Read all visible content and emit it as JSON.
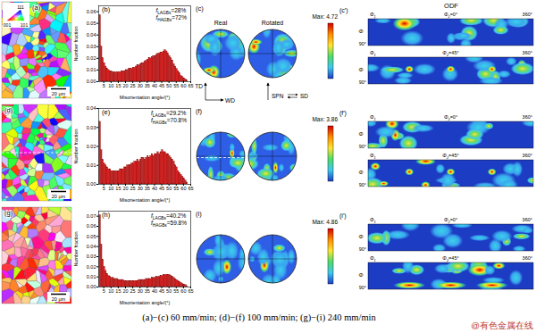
{
  "chart_data": [
    {
      "type": "histogram",
      "title": "(b)",
      "x_label": "Misorientation angle/(°)",
      "y_label": "Number fraction",
      "bins": [
        2,
        3,
        4,
        5,
        6,
        7,
        8,
        9,
        10,
        11,
        12,
        13,
        14,
        15,
        16,
        17,
        18,
        19,
        20,
        21,
        22,
        23,
        24,
        25,
        26,
        27,
        28,
        29,
        30,
        31,
        32,
        33,
        34,
        35,
        36,
        37,
        38,
        39,
        40,
        41,
        42,
        43,
        44,
        45,
        46,
        47,
        48,
        49,
        50,
        51,
        52,
        53,
        54,
        55,
        56,
        57,
        58,
        59,
        60,
        61,
        62,
        63
      ],
      "values": [
        0.057,
        0.03,
        0.02,
        0.016,
        0.013,
        0.011,
        0.01,
        0.009,
        0.009,
        0.008,
        0.008,
        0.008,
        0.008,
        0.008,
        0.008,
        0.009,
        0.009,
        0.009,
        0.01,
        0.01,
        0.011,
        0.011,
        0.011,
        0.012,
        0.012,
        0.013,
        0.014,
        0.014,
        0.015,
        0.016,
        0.016,
        0.017,
        0.018,
        0.019,
        0.02,
        0.02,
        0.021,
        0.022,
        0.022,
        0.023,
        0.024,
        0.024,
        0.025,
        0.025,
        0.026,
        0.027,
        0.026,
        0.024,
        0.022,
        0.02,
        0.018,
        0.015,
        0.013,
        0.011,
        0.009,
        0.007,
        0.005,
        0.004,
        0.003,
        0.002,
        0.001
      ],
      "color": "#d62020",
      "xlim": [
        1.5,
        65
      ],
      "xticks": [
        5,
        10,
        15,
        20,
        25,
        30,
        35,
        40,
        45,
        50,
        55,
        60,
        65
      ],
      "ylim": [
        0,
        0.065
      ],
      "yticks": [
        {
          "value": 0,
          "label": "0.00"
        },
        0.01,
        0.02,
        0.03,
        0.04,
        0.05,
        0.06
      ],
      "annotations": [
        "fLAGBs=28%",
        "fHAGBs=72%"
      ]
    },
    {
      "type": "histogram",
      "title": "(e)",
      "x_label": "Misorientation angle/(°)",
      "y_label": "Number fraction",
      "bins": [
        2,
        3,
        4,
        5,
        6,
        7,
        8,
        9,
        10,
        11,
        12,
        13,
        14,
        15,
        16,
        17,
        18,
        19,
        20,
        21,
        22,
        23,
        24,
        25,
        26,
        27,
        28,
        29,
        30,
        31,
        32,
        33,
        34,
        35,
        36,
        37,
        38,
        39,
        40,
        41,
        42,
        43,
        44,
        45,
        46,
        47,
        48,
        49,
        50,
        51,
        52,
        53,
        54,
        55,
        56,
        57,
        58,
        59,
        60,
        61,
        62,
        63
      ],
      "values": [
        0.033,
        0.018,
        0.013,
        0.011,
        0.01,
        0.009,
        0.008,
        0.008,
        0.007,
        0.007,
        0.007,
        0.007,
        0.007,
        0.007,
        0.008,
        0.008,
        0.008,
        0.009,
        0.009,
        0.01,
        0.01,
        0.01,
        0.011,
        0.011,
        0.012,
        0.012,
        0.013,
        0.012,
        0.013,
        0.014,
        0.014,
        0.013,
        0.014,
        0.015,
        0.014,
        0.015,
        0.016,
        0.015,
        0.016,
        0.016,
        0.017,
        0.016,
        0.017,
        0.018,
        0.017,
        0.017,
        0.016,
        0.016,
        0.015,
        0.014,
        0.013,
        0.012,
        0.01,
        0.009,
        0.007,
        0.006,
        0.005,
        0.004,
        0.003,
        0.002,
        0.001
      ],
      "color": "#d62020",
      "xlim": [
        1.5,
        65
      ],
      "xticks": [
        5,
        10,
        15,
        20,
        25,
        30,
        35,
        40,
        45,
        50,
        55,
        60,
        65
      ],
      "ylim": [
        0,
        0.04
      ],
      "yticks": [
        {
          "value": 0,
          "label": "0.00"
        },
        0.01,
        0.02,
        0.03,
        0.04
      ],
      "annotations": [
        "fLAGBs=29.2%",
        "fHAGBs=70.8%"
      ]
    },
    {
      "type": "histogram",
      "title": "(h)",
      "x_label": "Misorientation angle/(°)",
      "y_label": "Number fraction",
      "bins": [
        2,
        3,
        4,
        5,
        6,
        7,
        8,
        9,
        10,
        11,
        12,
        13,
        14,
        15,
        16,
        17,
        18,
        19,
        20,
        21,
        22,
        23,
        24,
        25,
        26,
        27,
        28,
        29,
        30,
        31,
        32,
        33,
        34,
        35,
        36,
        37,
        38,
        39,
        40,
        41,
        42,
        43,
        44,
        45,
        46,
        47,
        48,
        49,
        50,
        51,
        52,
        53,
        54,
        55,
        56,
        57,
        58,
        59,
        60,
        61,
        62,
        63
      ],
      "values": [
        0.071,
        0.042,
        0.027,
        0.02,
        0.016,
        0.013,
        0.011,
        0.01,
        0.009,
        0.009,
        0.008,
        0.008,
        0.008,
        0.007,
        0.007,
        0.007,
        0.007,
        0.006,
        0.006,
        0.006,
        0.006,
        0.006,
        0.006,
        0.006,
        0.006,
        0.006,
        0.006,
        0.007,
        0.007,
        0.007,
        0.007,
        0.007,
        0.008,
        0.008,
        0.008,
        0.008,
        0.009,
        0.009,
        0.009,
        0.01,
        0.01,
        0.01,
        0.011,
        0.011,
        0.012,
        0.012,
        0.012,
        0.012,
        0.012,
        0.011,
        0.01,
        0.009,
        0.008,
        0.007,
        0.006,
        0.005,
        0.004,
        0.003,
        0.002,
        0.002,
        0.001
      ],
      "color": "#d62020",
      "xlim": [
        1.5,
        65
      ],
      "xticks": [
        5,
        10,
        15,
        20,
        25,
        30,
        35,
        40,
        45,
        50,
        55,
        60,
        65
      ],
      "ylim": [
        0,
        0.075
      ],
      "yticks": [
        {
          "value": 0,
          "label": "0.00"
        },
        0.01,
        0.02,
        0.03,
        0.04,
        0.05,
        0.06,
        0.07
      ],
      "annotations": [
        "fLAGBs=40.2%",
        "fHAGBs=59.8%"
      ]
    }
  ],
  "maps": [
    {
      "label": "(a)",
      "scale_bar": "20 μm"
    },
    {
      "label": "(d)",
      "scale_bar": "20 μm"
    },
    {
      "label": "(g)",
      "scale_bar": "20 μm"
    }
  ],
  "ipf_key": {
    "top": "111",
    "left": "001",
    "right": "101"
  },
  "pole_figures": {
    "titles": [
      "Real",
      "Rotated"
    ],
    "panels": [
      {
        "label": "(c)",
        "max": "Max: 4.72"
      },
      {
        "label": "(f)",
        "max": "Max: 3.86"
      },
      {
        "label": "(i)",
        "max": "Max: 4.86"
      }
    ],
    "axes_left": [
      "TD",
      "WD"
    ],
    "axes_right": [
      "SPN",
      "SD"
    ]
  },
  "odf": {
    "title": "ODF",
    "panels": [
      "(c′)",
      "(f′)",
      "(i′)"
    ],
    "sections": [
      "Φ2=0°",
      "Φ2=45°"
    ],
    "phi1": "Φ1",
    "phi1_end": "360°",
    "Phi": "Φ",
    "Phi_end": "90°"
  },
  "caption": "(a)−(c) 60 mm/min; (d)−(f) 100 mm/min; (g)−(i) 240 mm/min",
  "watermark": "@有色金属在线"
}
